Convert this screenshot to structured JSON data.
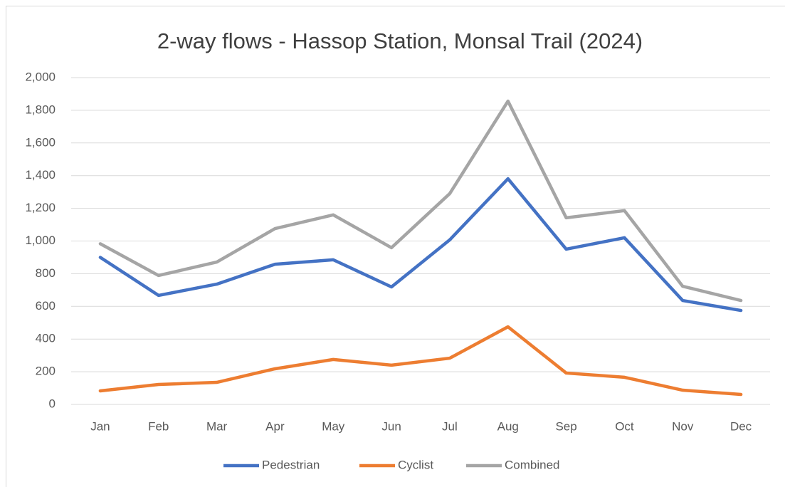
{
  "chart_data": {
    "type": "line",
    "title": "2-way flows - Hassop Station, Monsal Trail (2024)",
    "categories": [
      "Jan",
      "Feb",
      "Mar",
      "Apr",
      "May",
      "Jun",
      "Jul",
      "Aug",
      "Sep",
      "Oct",
      "Nov",
      "Dec"
    ],
    "series": [
      {
        "name": "Pedestrian",
        "color": "#4472c4",
        "values": [
          900,
          667,
          736,
          858,
          885,
          719,
          1007,
          1381,
          950,
          1020,
          636,
          575
        ]
      },
      {
        "name": "Cyclist",
        "color": "#ed7d31",
        "values": [
          83,
          122,
          135,
          218,
          275,
          240,
          283,
          475,
          192,
          166,
          87,
          61
        ]
      },
      {
        "name": "Combined",
        "color": "#a5a5a5",
        "values": [
          983,
          789,
          871,
          1076,
          1160,
          959,
          1290,
          1856,
          1142,
          1186,
          723,
          636
        ]
      }
    ],
    "ylim": [
      0,
      2000
    ],
    "yticks": [
      0,
      200,
      400,
      600,
      800,
      {
        "value": 1000,
        "label": "1,000"
      },
      {
        "value": 1200,
        "label": "1,200"
      },
      {
        "value": 1400,
        "label": "1,400"
      },
      {
        "value": 1600,
        "label": "1,600"
      },
      {
        "value": 1800,
        "label": "1,800"
      },
      {
        "value": 2000,
        "label": "2,000"
      }
    ],
    "grid": true,
    "legend": "bottom"
  }
}
